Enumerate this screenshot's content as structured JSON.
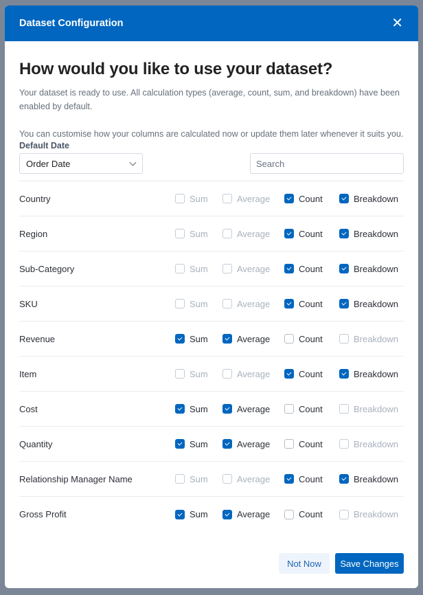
{
  "header": {
    "title": "Dataset Configuration",
    "close_icon": "close-icon"
  },
  "heading": "How would you like to use your dataset?",
  "intro": "Your dataset is ready to use. All calculation types (average, count, sum, and breakdown) have been enabled by default.",
  "intro2": "You can customise how your columns are calculated now or update them later whenever it suits you.",
  "default_date": {
    "label": "Default Date",
    "value": "Order Date"
  },
  "search": {
    "placeholder": "Search",
    "value": ""
  },
  "option_labels": [
    "Sum",
    "Average",
    "Count",
    "Breakdown"
  ],
  "rows": [
    {
      "name": "Country",
      "checked": [
        false,
        false,
        true,
        true
      ],
      "enabled": [
        false,
        false,
        true,
        true
      ]
    },
    {
      "name": "Region",
      "checked": [
        false,
        false,
        true,
        true
      ],
      "enabled": [
        false,
        false,
        true,
        true
      ]
    },
    {
      "name": "Sub-Category",
      "checked": [
        false,
        false,
        true,
        true
      ],
      "enabled": [
        false,
        false,
        true,
        true
      ]
    },
    {
      "name": "SKU",
      "checked": [
        false,
        false,
        true,
        true
      ],
      "enabled": [
        false,
        false,
        true,
        true
      ]
    },
    {
      "name": "Revenue",
      "checked": [
        true,
        true,
        false,
        false
      ],
      "enabled": [
        true,
        true,
        true,
        false
      ]
    },
    {
      "name": "Item",
      "checked": [
        false,
        false,
        true,
        true
      ],
      "enabled": [
        false,
        false,
        true,
        true
      ]
    },
    {
      "name": "Cost",
      "checked": [
        true,
        true,
        false,
        false
      ],
      "enabled": [
        true,
        true,
        true,
        false
      ]
    },
    {
      "name": "Quantity",
      "checked": [
        true,
        true,
        false,
        false
      ],
      "enabled": [
        true,
        true,
        true,
        false
      ]
    },
    {
      "name": "Relationship Manager Name",
      "checked": [
        false,
        false,
        true,
        true
      ],
      "enabled": [
        false,
        false,
        true,
        true
      ]
    },
    {
      "name": "Gross Profit",
      "checked": [
        true,
        true,
        false,
        false
      ],
      "enabled": [
        true,
        true,
        true,
        false
      ]
    }
  ],
  "footer": {
    "not_now": "Not Now",
    "save": "Save Changes"
  },
  "colors": {
    "primary": "#0066bf",
    "overlay": "#7b8696",
    "disabled_text": "#a9b1bd"
  }
}
